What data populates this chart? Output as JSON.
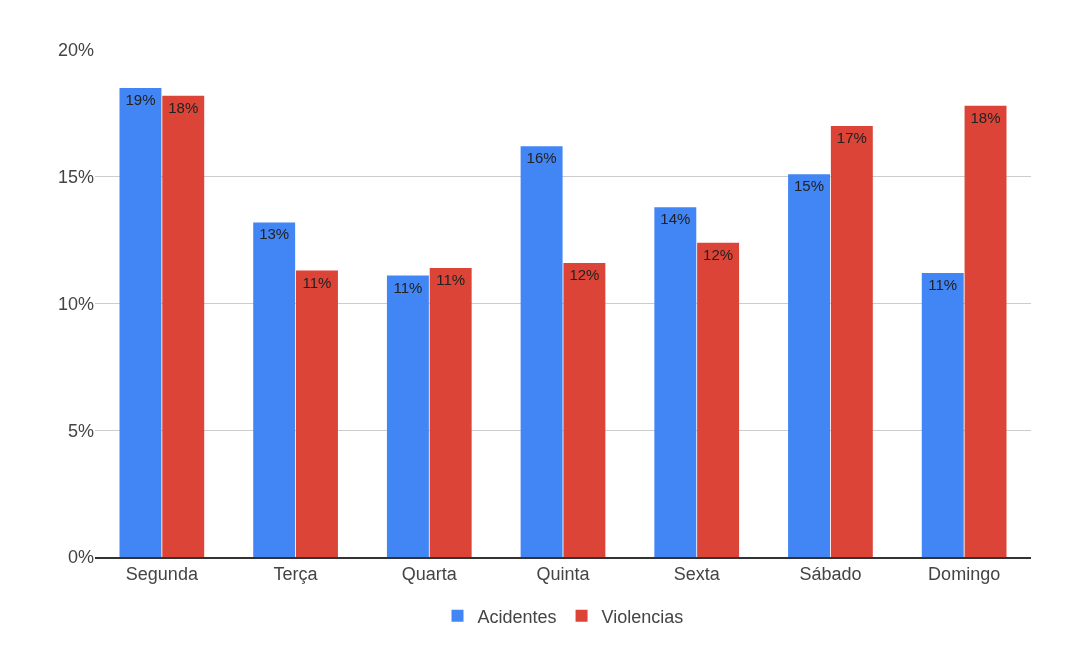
{
  "chart_data": {
    "type": "bar",
    "categories": [
      "Segunda",
      "Terça",
      "Quarta",
      "Quinta",
      "Sexta",
      "Sábado",
      "Domingo"
    ],
    "series": [
      {
        "name": "Acidentes",
        "color": "#4285f4",
        "values": [
          18.5,
          13.2,
          11.1,
          16.2,
          13.8,
          15.1,
          11.2
        ],
        "value_labels": [
          "19%",
          "13%",
          "11%",
          "16%",
          "14%",
          "15%",
          "11%"
        ]
      },
      {
        "name": "Violencias",
        "color": "#db4437",
        "values": [
          18.2,
          11.3,
          11.4,
          11.6,
          12.4,
          17.0,
          17.8
        ],
        "value_labels": [
          "18%",
          "11%",
          "11%",
          "12%",
          "12%",
          "17%",
          "18%"
        ]
      }
    ],
    "ylim": [
      0,
      20
    ],
    "yticks": [
      {
        "value": 0,
        "label": "0%"
      },
      {
        "value": 5,
        "label": "5%"
      },
      {
        "value": 10,
        "label": "10%"
      },
      {
        "value": 15,
        "label": "15%"
      },
      {
        "value": 20,
        "label": "20%"
      }
    ],
    "grid": "y",
    "legend": "bottom"
  }
}
